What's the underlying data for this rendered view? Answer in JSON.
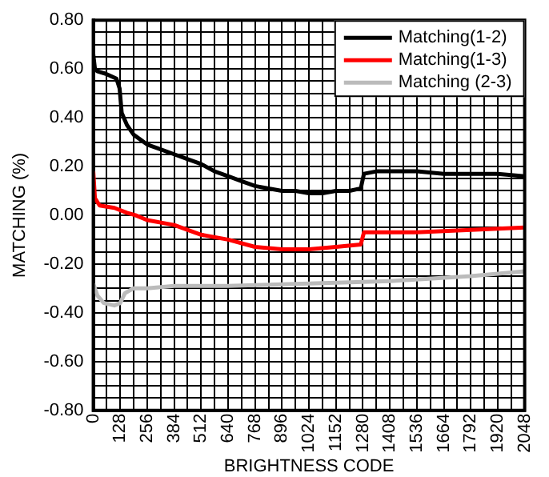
{
  "chart_data": {
    "type": "line",
    "xlabel": "BRIGHTNESS CODE",
    "ylabel": "MATCHING (%)",
    "xlim": [
      0,
      2048
    ],
    "xticks": [
      0,
      {
        "value": 64,
        "label": null
      },
      128,
      {
        "value": 192,
        "label": null
      },
      256,
      {
        "value": 320,
        "label": null
      },
      384,
      {
        "value": 448,
        "label": null
      },
      512,
      {
        "value": 576,
        "label": null
      },
      640,
      {
        "value": 704,
        "label": null
      },
      768,
      {
        "value": 832,
        "label": null
      },
      896,
      {
        "value": 960,
        "label": null
      },
      1024,
      {
        "value": 1088,
        "label": null
      },
      1152,
      {
        "value": 1216,
        "label": null
      },
      1280,
      {
        "value": 1344,
        "label": null
      },
      1408,
      {
        "value": 1472,
        "label": null
      },
      1536,
      {
        "value": 1600,
        "label": null
      },
      1664,
      {
        "value": 1728,
        "label": null
      },
      1792,
      {
        "value": 1856,
        "label": null
      },
      1920,
      {
        "value": 1984,
        "label": null
      },
      2048
    ],
    "ylim": [
      -0.8,
      0.8
    ],
    "yticks": [
      {
        "value": -0.8,
        "label": "-0.80"
      },
      {
        "value": -0.75,
        "label": null
      },
      {
        "value": -0.7,
        "label": null
      },
      {
        "value": -0.65,
        "label": null
      },
      {
        "value": -0.6,
        "label": "-0.60"
      },
      {
        "value": -0.55,
        "label": null
      },
      {
        "value": -0.5,
        "label": null
      },
      {
        "value": -0.45,
        "label": null
      },
      {
        "value": -0.4,
        "label": "-0.40"
      },
      {
        "value": -0.35,
        "label": null
      },
      {
        "value": -0.3,
        "label": null
      },
      {
        "value": -0.25,
        "label": null
      },
      {
        "value": -0.2,
        "label": "-0.20"
      },
      {
        "value": -0.15,
        "label": null
      },
      {
        "value": -0.1,
        "label": null
      },
      {
        "value": -0.05,
        "label": null
      },
      {
        "value": 0,
        "label": "0.00"
      },
      {
        "value": 0.05,
        "label": null
      },
      {
        "value": 0.1,
        "label": null
      },
      {
        "value": 0.15,
        "label": null
      },
      {
        "value": 0.2,
        "label": "0.20"
      },
      {
        "value": 0.25,
        "label": null
      },
      {
        "value": 0.3,
        "label": null
      },
      {
        "value": 0.35,
        "label": null
      },
      {
        "value": 0.4,
        "label": "0.40"
      },
      {
        "value": 0.45,
        "label": null
      },
      {
        "value": 0.5,
        "label": null
      },
      {
        "value": 0.55,
        "label": null
      },
      {
        "value": 0.6,
        "label": "0.60"
      },
      {
        "value": 0.65,
        "label": null
      },
      {
        "value": 0.7,
        "label": null
      },
      {
        "value": 0.75,
        "label": null
      },
      {
        "value": 0.8,
        "label": "0.80"
      }
    ],
    "grid": true,
    "legend": "top right",
    "marker": "none",
    "line_style": "solid",
    "series": [
      {
        "name": "Matching(1-2)",
        "color": "#000000",
        "x": [
          0,
          8,
          20,
          60,
          110,
          125,
          135,
          160,
          192,
          256,
          320,
          384,
          448,
          512,
          576,
          640,
          704,
          768,
          832,
          896,
          960,
          1024,
          1088,
          1152,
          1216,
          1270,
          1285,
          1344,
          1408,
          1536,
          1664,
          1792,
          1920,
          2048
        ],
        "values": [
          0.66,
          0.6,
          0.59,
          0.58,
          0.56,
          0.52,
          0.42,
          0.37,
          0.33,
          0.29,
          0.27,
          0.25,
          0.23,
          0.21,
          0.18,
          0.16,
          0.14,
          0.12,
          0.11,
          0.1,
          0.1,
          0.09,
          0.09,
          0.1,
          0.1,
          0.11,
          0.17,
          0.18,
          0.18,
          0.18,
          0.17,
          0.17,
          0.17,
          0.16
        ]
      },
      {
        "name": "Matching(1-3)",
        "color": "#ff0000",
        "x": [
          0,
          8,
          30,
          100,
          160,
          200,
          256,
          384,
          512,
          640,
          768,
          896,
          1024,
          1152,
          1270,
          1285,
          1408,
          1536,
          1792,
          2048
        ],
        "values": [
          0.18,
          0.07,
          0.04,
          0.03,
          0.01,
          0.0,
          -0.02,
          -0.04,
          -0.08,
          -0.1,
          -0.13,
          -0.14,
          -0.14,
          -0.13,
          -0.12,
          -0.07,
          -0.07,
          -0.07,
          -0.06,
          -0.05
        ]
      },
      {
        "name": "Matching (2-3)",
        "color": "#bbbbbb",
        "x": [
          0,
          20,
          50,
          100,
          128,
          150,
          190,
          256,
          384,
          640,
          1024,
          1408,
          1792,
          2048
        ],
        "values": [
          -0.28,
          -0.33,
          -0.36,
          -0.37,
          -0.36,
          -0.32,
          -0.3,
          -0.3,
          -0.29,
          -0.29,
          -0.28,
          -0.27,
          -0.25,
          -0.23
        ]
      }
    ]
  }
}
